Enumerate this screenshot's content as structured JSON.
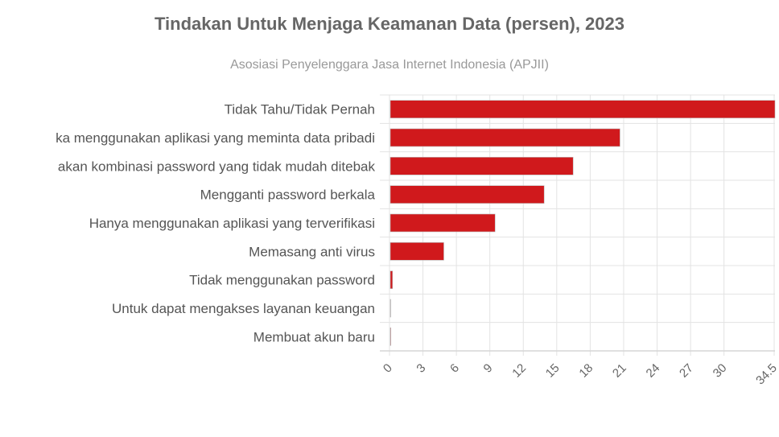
{
  "chart_data": {
    "type": "bar",
    "orientation": "horizontal",
    "title": "Tindakan Untuk Menjaga Keamanan Data (persen), 2023",
    "subtitle": "Asosiasi Penyelenggara Jasa Internet Indonesia (APJII)",
    "categories": [
      "Tidak Tahu/Tidak Pernah",
      "ka menggunakan aplikasi yang meminta data pribadi",
      "akan kombinasi password yang tidak mudah ditebak",
      "Mengganti password berkala",
      "Hanya menggunakan aplikasi yang terverifikasi",
      "Memasang anti virus",
      "Tidak menggunakan password",
      "Untuk dapat mengakses layanan keuangan",
      "Membuat akun baru"
    ],
    "values": [
      34.5,
      20.6,
      16.4,
      13.8,
      9.4,
      4.8,
      0.2,
      0.02,
      0.05
    ],
    "xlim": [
      0,
      34.5
    ],
    "xticks": [
      "0",
      "3",
      "6",
      "9",
      "12",
      "15",
      "18",
      "21",
      "24",
      "27",
      "30",
      "34.5"
    ],
    "xtick_values": [
      0,
      3,
      6,
      9,
      12,
      15,
      18,
      21,
      24,
      27,
      30,
      34.5
    ],
    "grid": true,
    "legend": "none",
    "bar_color": "#d0191c"
  }
}
